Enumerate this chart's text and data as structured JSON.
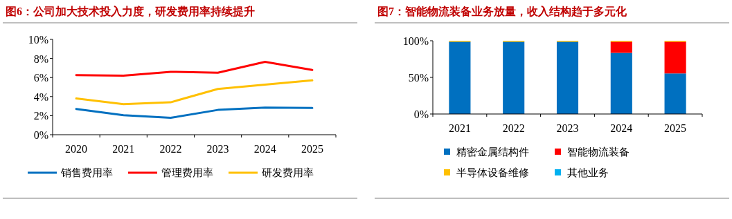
{
  "chart_data": [
    {
      "type": "line",
      "title": "图6：公司加大技术投入力度，研发费用率持续提升",
      "categories": [
        "2020",
        "2021",
        "2022",
        "2023",
        "2024",
        "2025"
      ],
      "ylim": [
        0,
        10
      ],
      "yticks": [
        {
          "value": 0,
          "label": "0%"
        },
        {
          "value": 2,
          "label": "2%"
        },
        {
          "value": 4,
          "label": "4%"
        },
        {
          "value": 6,
          "label": "6%"
        },
        {
          "value": 8,
          "label": "8%"
        },
        {
          "value": 10,
          "label": "10%"
        }
      ],
      "grid": false,
      "legend": "bottom",
      "marker": "none",
      "line_style": "solid",
      "series": [
        {
          "name": "销售费用率",
          "color": "#0070c0",
          "values": [
            2.7,
            2.05,
            1.77,
            2.6,
            2.85,
            2.8
          ]
        },
        {
          "name": "管理费用率",
          "color": "#ff0000",
          "values": [
            6.25,
            6.2,
            6.6,
            6.5,
            7.65,
            6.8
          ]
        },
        {
          "name": "研发费用率",
          "color": "#ffc000",
          "values": [
            3.8,
            3.2,
            3.4,
            4.8,
            5.25,
            5.7
          ]
        }
      ]
    },
    {
      "type": "bar",
      "stacked": true,
      "title": "图7：智能物流装备业务放量，收入结构趋于多元化",
      "categories": [
        "2021",
        "2022",
        "2023",
        "2024",
        "2025"
      ],
      "ylim": [
        0,
        100
      ],
      "yticks": [
        {
          "value": 0,
          "label": "0%"
        },
        {
          "value": 50,
          "label": "50%"
        },
        {
          "value": 100,
          "label": "100%"
        }
      ],
      "grid": false,
      "legend": "bottom",
      "series": [
        {
          "name": "精密金属结构件",
          "color": "#0070c0",
          "values": [
            98.7,
            98.7,
            98.7,
            83.5,
            55.4
          ]
        },
        {
          "name": "智能物流装备",
          "color": "#ff0000",
          "values": [
            0,
            0,
            0,
            15.2,
            43.3
          ]
        },
        {
          "name": "半导体设备维修",
          "color": "#ffc000",
          "values": [
            1.3,
            1.3,
            1.3,
            1.3,
            1.3
          ]
        },
        {
          "name": "其他业务",
          "color": "#00b0f0",
          "values": [
            0,
            0,
            0,
            0,
            0
          ]
        }
      ]
    }
  ]
}
